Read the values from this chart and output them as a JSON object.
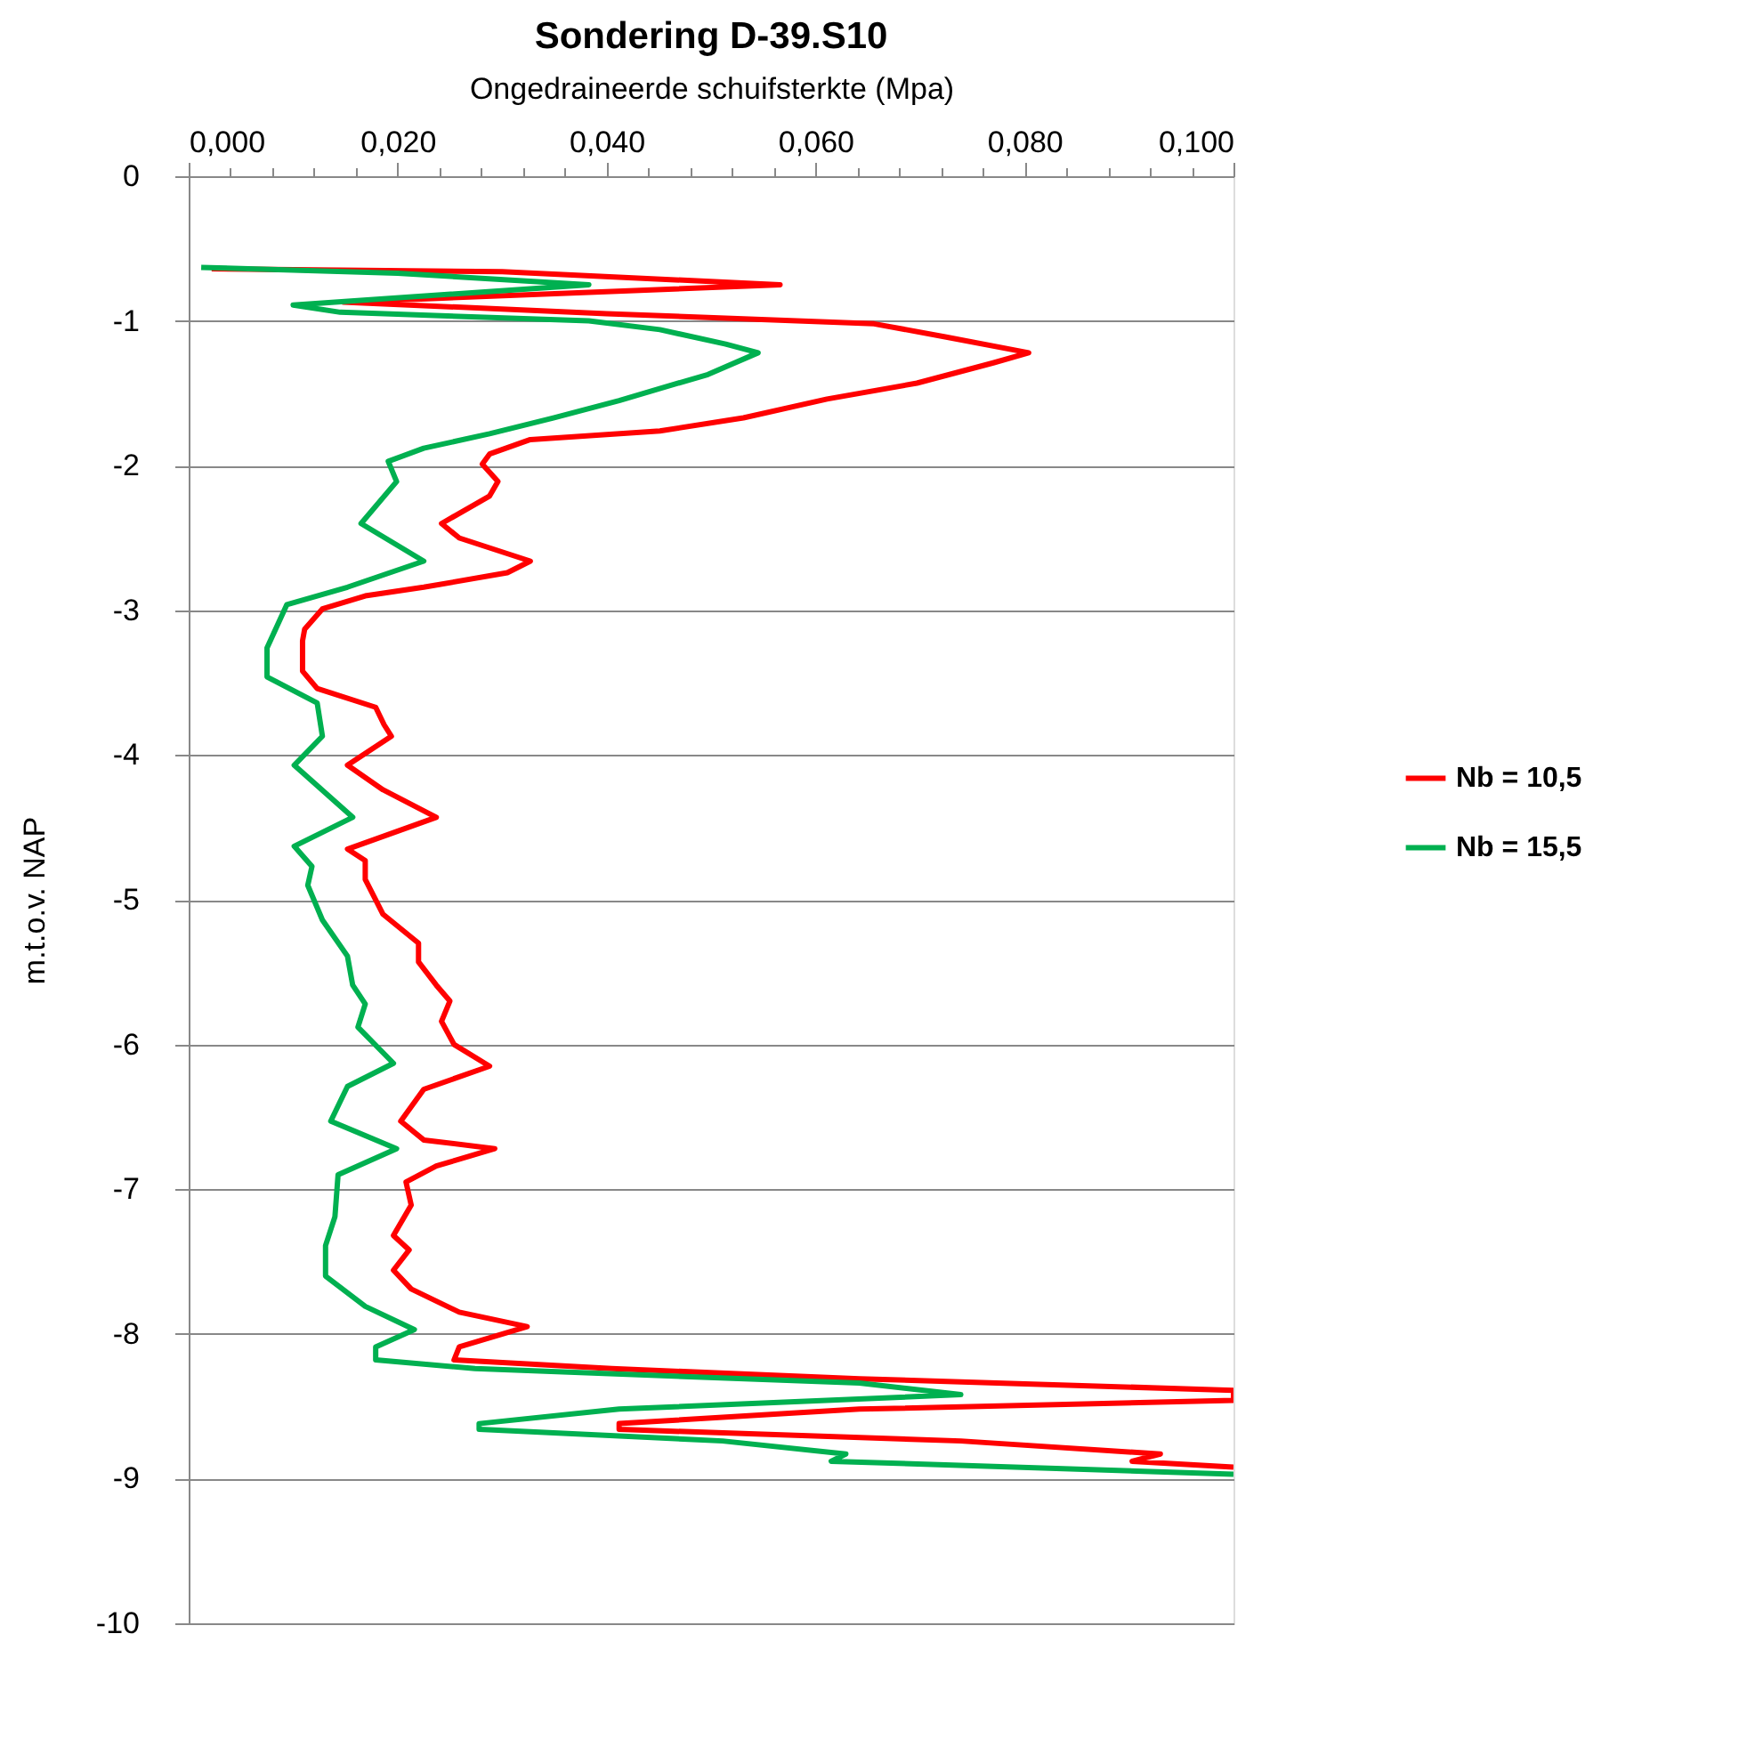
{
  "chart_data": {
    "type": "line",
    "title": "Sondering D-39.S10",
    "xlabel": "Ongedraineerde schuifsterkte (Mpa)",
    "ylabel": "m.t.o.v. NAP",
    "xlim": [
      0,
      0.1
    ],
    "ylim": [
      -10,
      0
    ],
    "xticks": [
      {
        "value": 0,
        "label": "0,000"
      },
      {
        "value": 0.004,
        "label": null
      },
      {
        "value": 0.008,
        "label": null
      },
      {
        "value": 0.012,
        "label": null
      },
      {
        "value": 0.016,
        "label": null
      },
      {
        "value": 0.02,
        "label": "0,020"
      },
      {
        "value": 0.024,
        "label": null
      },
      {
        "value": 0.028,
        "label": null
      },
      {
        "value": 0.032,
        "label": null
      },
      {
        "value": 0.036,
        "label": null
      },
      {
        "value": 0.04,
        "label": "0,040"
      },
      {
        "value": 0.044,
        "label": null
      },
      {
        "value": 0.048,
        "label": null
      },
      {
        "value": 0.052,
        "label": null
      },
      {
        "value": 0.056,
        "label": null
      },
      {
        "value": 0.06,
        "label": "0,060"
      },
      {
        "value": 0.064,
        "label": null
      },
      {
        "value": 0.068,
        "label": null
      },
      {
        "value": 0.072,
        "label": null
      },
      {
        "value": 0.076,
        "label": null
      },
      {
        "value": 0.08,
        "label": "0,080"
      },
      {
        "value": 0.084,
        "label": null
      },
      {
        "value": 0.088,
        "label": null
      },
      {
        "value": 0.092,
        "label": null
      },
      {
        "value": 0.096,
        "label": null
      },
      {
        "value": 0.1,
        "label": "0,100"
      }
    ],
    "yticks": [
      0,
      -1,
      -2,
      -3,
      -4,
      -5,
      -6,
      -7,
      -8,
      -9,
      -10
    ],
    "grid": "y",
    "legend": "right",
    "line_style": "solid",
    "marker": "none",
    "series": [
      {
        "name": "Nb = 10,5",
        "color": "#ff0000",
        "x": [
          0.0022,
          0.03,
          0.0566,
          0.0148,
          0.04,
          0.0656,
          0.0724,
          0.0804,
          0.077,
          0.0697,
          0.0611,
          0.0531,
          0.0451,
          0.0327,
          0.0288,
          0.0281,
          0.0296,
          0.0288,
          0.0242,
          0.0259,
          0.0327,
          0.0305,
          0.0225,
          0.0169,
          0.0128,
          0.0111,
          0.0109,
          0.0109,
          0.0123,
          0.0179,
          0.0187,
          0.0194,
          0.0152,
          0.0186,
          0.0237,
          0.0152,
          0.0169,
          0.0169,
          0.0186,
          0.022,
          0.022,
          0.0237,
          0.025,
          0.0242,
          0.0254,
          0.0288,
          0.0225,
          0.0203,
          0.0225,
          0.0293,
          0.0237,
          0.0208,
          0.0213,
          0.0196,
          0.0211,
          0.0196,
          0.0213,
          0.0259,
          0.0324,
          0.0259,
          0.0254,
          0.0405,
          0.0642,
          0.1,
          0.1,
          0.0642,
          0.0412,
          0.0412,
          0.0739,
          0.093,
          0.0903,
          0.1
        ],
        "values": [
          -0.64,
          -0.66,
          -0.75,
          -0.87,
          -0.95,
          -1.02,
          -1.11,
          -1.22,
          -1.29,
          -1.43,
          -1.54,
          -1.67,
          -1.76,
          -1.82,
          -1.92,
          -1.99,
          -2.11,
          -2.21,
          -2.4,
          -2.5,
          -2.66,
          -2.74,
          -2.84,
          -2.9,
          -2.99,
          -3.13,
          -3.21,
          -3.42,
          -3.54,
          -3.67,
          -3.79,
          -3.87,
          -4.07,
          -4.24,
          -4.43,
          -4.65,
          -4.73,
          -4.86,
          -5.1,
          -5.3,
          -5.43,
          -5.59,
          -5.7,
          -5.84,
          -6.0,
          -6.15,
          -6.31,
          -6.53,
          -6.66,
          -6.72,
          -6.84,
          -6.95,
          -7.11,
          -7.32,
          -7.42,
          -7.56,
          -7.69,
          -7.85,
          -7.95,
          -8.09,
          -8.18,
          -8.24,
          -8.31,
          -8.39,
          -8.46,
          -8.52,
          -8.62,
          -8.66,
          -8.74,
          -8.83,
          -8.88,
          -8.92
        ]
      },
      {
        "name": "Nb = 15,5",
        "color": "#00b050",
        "x": [
          0.0012,
          0.02,
          0.0383,
          0.01,
          0.0145,
          0.0383,
          0.0451,
          0.0514,
          0.0545,
          0.0497,
          0.0412,
          0.0349,
          0.0288,
          0.0225,
          0.0191,
          0.0199,
          0.0165,
          0.0225,
          0.0152,
          0.0094,
          0.0075,
          0.0075,
          0.0123,
          0.0128,
          0.0101,
          0.0157,
          0.0101,
          0.0118,
          0.0114,
          0.0128,
          0.0152,
          0.0157,
          0.0169,
          0.0162,
          0.0196,
          0.0152,
          0.0136,
          0.0199,
          0.0143,
          0.014,
          0.0131,
          0.0131,
          0.0169,
          0.0216,
          0.0179,
          0.0179,
          0.0274,
          0.0642,
          0.0739,
          0.0412,
          0.0278,
          0.0278,
          0.0511,
          0.0629,
          0.0615,
          0.1
        ],
        "values": [
          -0.63,
          -0.67,
          -0.75,
          -0.89,
          -0.94,
          -1.0,
          -1.06,
          -1.16,
          -1.22,
          -1.37,
          -1.55,
          -1.67,
          -1.78,
          -1.88,
          -1.97,
          -2.11,
          -2.4,
          -2.66,
          -2.84,
          -2.96,
          -3.26,
          -3.46,
          -3.64,
          -3.87,
          -4.07,
          -4.43,
          -4.63,
          -4.77,
          -4.9,
          -5.14,
          -5.39,
          -5.59,
          -5.72,
          -5.88,
          -6.13,
          -6.29,
          -6.53,
          -6.72,
          -6.9,
          -7.19,
          -7.39,
          -7.6,
          -7.81,
          -7.97,
          -8.09,
          -8.18,
          -8.24,
          -8.34,
          -8.42,
          -8.52,
          -8.62,
          -8.66,
          -8.74,
          -8.83,
          -8.88,
          -8.97
        ]
      }
    ]
  }
}
